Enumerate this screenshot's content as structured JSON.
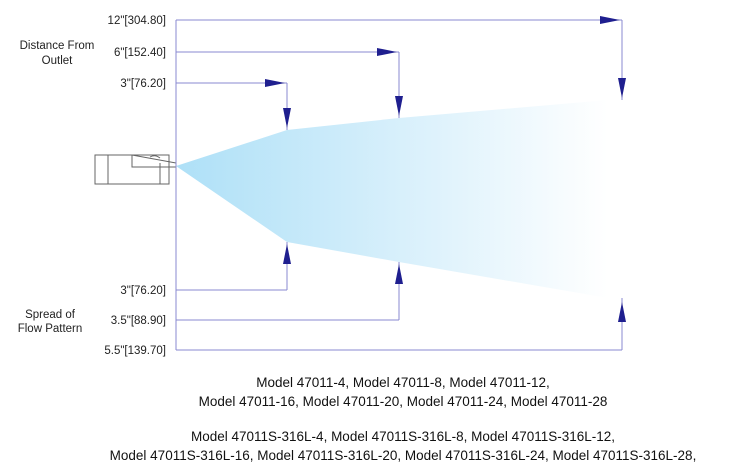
{
  "distance_heading": [
    "Distance From",
    "Outlet"
  ],
  "distances": [
    "12\"[304.80]",
    "6\"[152.40]",
    "3\"[76.20]"
  ],
  "spread_heading": [
    "Spread of",
    "Flow Pattern"
  ],
  "spreads": [
    "3\"[76.20]",
    "3.5\"[88.90]",
    "5.5\"[139.70]"
  ],
  "models": [
    "Model 47011-4, Model 47011-8, Model 47011-12,",
    "Model 47011-16, Model 47011-20, Model 47011-24, Model 47011-28",
    "Model 47011S-316L-4, Model 47011S-316L-8, Model 47011S-316L-12,",
    "Model 47011S-316L-16, Model 47011S-316L-20, Model 47011S-316L-24, Model 47011S-316L-28,"
  ],
  "colors": {
    "line": "#8a8ad0",
    "arrow": "#1f1f8f",
    "spray": "#aee0f7"
  }
}
